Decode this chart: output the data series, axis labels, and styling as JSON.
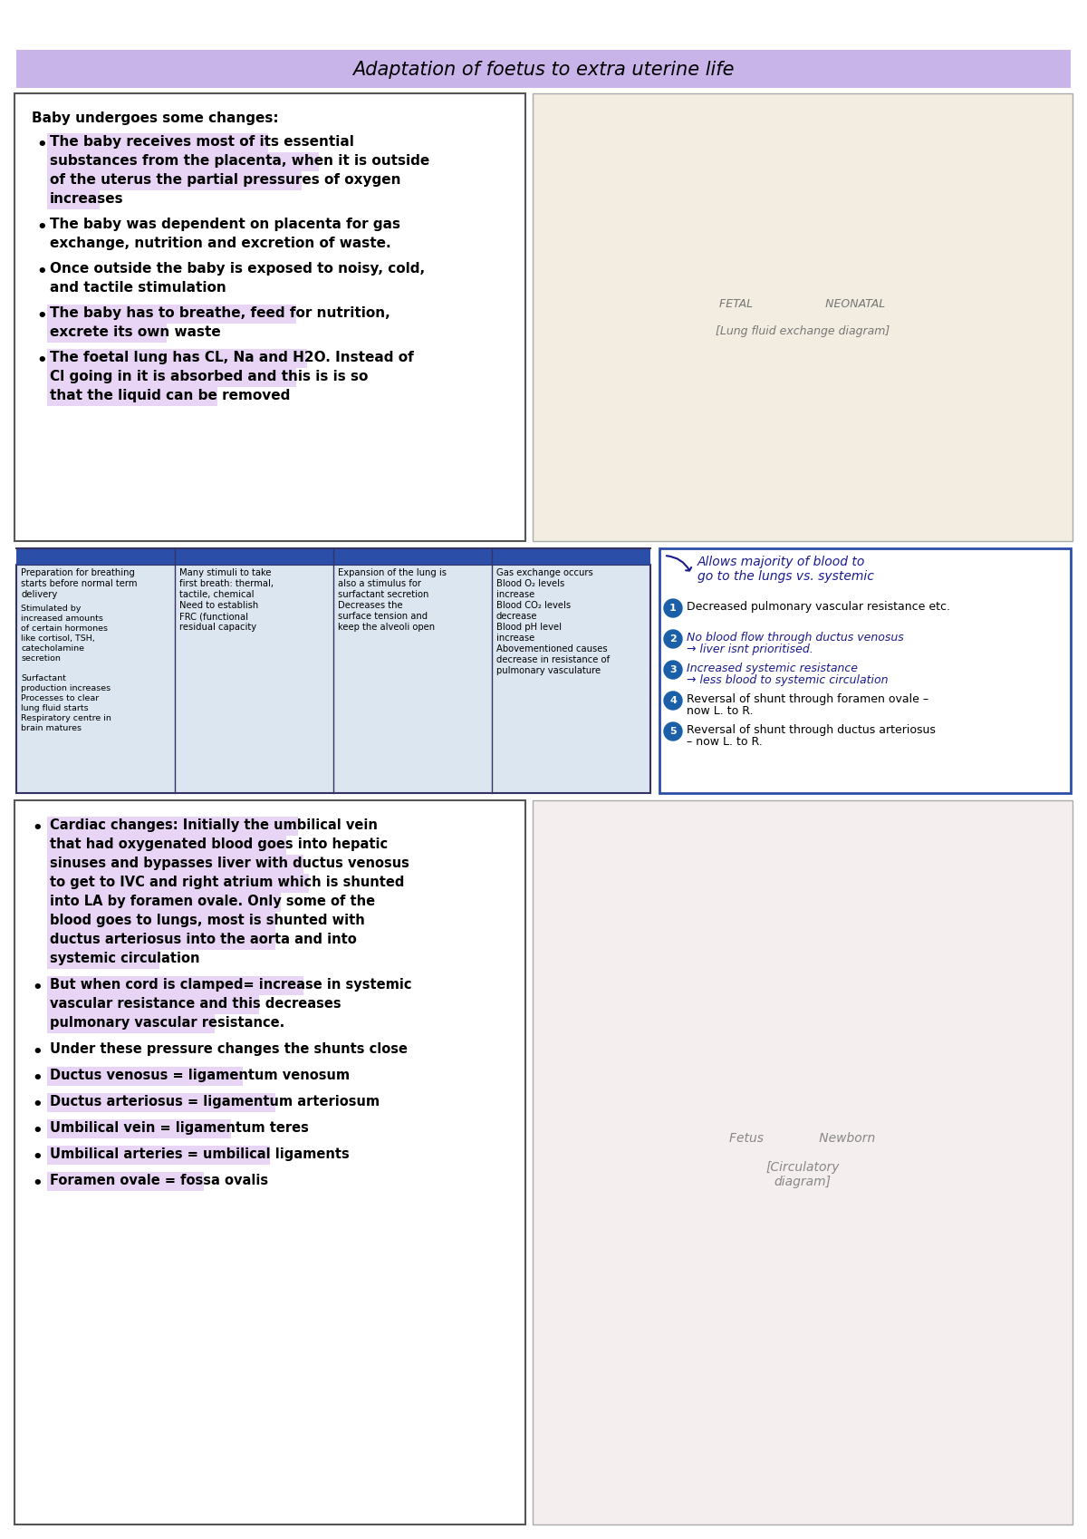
{
  "title": "Adaptation of foetus to extra uterine life",
  "title_bg": "#c8b4e8",
  "bg_color": "#ffffff",
  "section1_header": "Baby undergoes some changes:",
  "section1_bullets": [
    {
      "text": "The baby receives most of its essential substances from the placenta, when it is outside of the uterus the partial pressures of oxygen increases",
      "highlight": true
    },
    {
      "text": "The baby was dependent on placenta for gas exchange, nutrition and excretion of waste.",
      "highlight": false
    },
    {
      "text": "Once outside the baby is exposed to noisy, cold, and tactile stimulation",
      "highlight": false
    },
    {
      "text": "The baby has to breathe, feed for nutrition, excrete its own waste",
      "highlight": true
    },
    {
      "text": "The foetal lung has CL, Na and H2O. Instead of Cl going in it is absorbed and this is is so that the liquid can be removed",
      "highlight": true
    }
  ],
  "section2_cols": [
    {
      "header": "Preparation for breathing\nstarts before normal term\ndelivery",
      "body": "Stimulated by\nincreased amounts\nof certain hormones\nlike cortisol, TSH,\ncatecholamine\nsecretion\n\nSurfactant\nproduction increases\nProcesses to clear\nlung fluid starts\nRespiratory centre in\nbrain matures"
    },
    {
      "header": "Many stimuli to take\nfirst breath: thermal,\ntactile, chemical\nNeed to establish\nFRC (functional\nresidual capacity",
      "body": ""
    },
    {
      "header": "Expansion of the lung is\nalso a stimulus for\nsurfactant secretion\nDecreases the\nsurface tension and\nkeep the alveoli open",
      "body": ""
    },
    {
      "header": "Gas exchange occurs\nBlood O₂ levels\nincrease\nBlood CO₂ levels\ndecrease\nBlood pH level\nincrease\nAbovementioned causes\ndecrease in resistance of\npulmonary vasculature",
      "body": ""
    }
  ],
  "section2_right_items": [
    {
      "num": "1",
      "text": "Decreased pulmonary vascular resistance etc.",
      "handwritten": false
    },
    {
      "num": "2",
      "text": "No blood flow through ductus venosus\n→ liver isnt prioritised.",
      "handwritten": true
    },
    {
      "num": "3",
      "text": "Increased systemic resistance\n→ less blood to systemic circulation",
      "handwritten": true
    },
    {
      "num": "4",
      "text": "Reversal of shunt through foramen ovale –\nnow L. to R.",
      "handwritten": false
    },
    {
      "num": "5",
      "text": "Reversal of shunt through ductus arteriosus\n– now L. to R.",
      "handwritten": false
    }
  ],
  "section3_bullets": [
    {
      "text": "Cardiac changes:  Initially the umbilical vein that had oxygenated blood goes into hepatic sinuses and bypasses liver with ductus venosus to get to IVC and right atrium which is shunted into LA by foramen ovale. Only some of the blood goes to lungs, most is shunted with ductus arteriosus into the aorta and into systemic circulation",
      "highlight": true
    },
    {
      "text": "But when cord is clamped= increase in systemic vascular resistance and this decreases pulmonary vascular resistance.",
      "highlight": true
    },
    {
      "text": "Under these pressure changes the shunts close",
      "highlight": false
    },
    {
      "text": "Ductus venosus = ligamentum venosum",
      "highlight": true
    },
    {
      "text": "Ductus arteriosus = ligamentum arteriosum",
      "highlight": true
    },
    {
      "text": "Umbilical vein = ligamentum teres",
      "highlight": true
    },
    {
      "text": "Umbilical arteries = umbilical ligaments",
      "highlight": true
    },
    {
      "text": "Foramen ovale = fossa ovalis",
      "highlight": true
    }
  ],
  "highlight_color": "#e8d5f5",
  "handwriting_color": "#1a1a8c"
}
